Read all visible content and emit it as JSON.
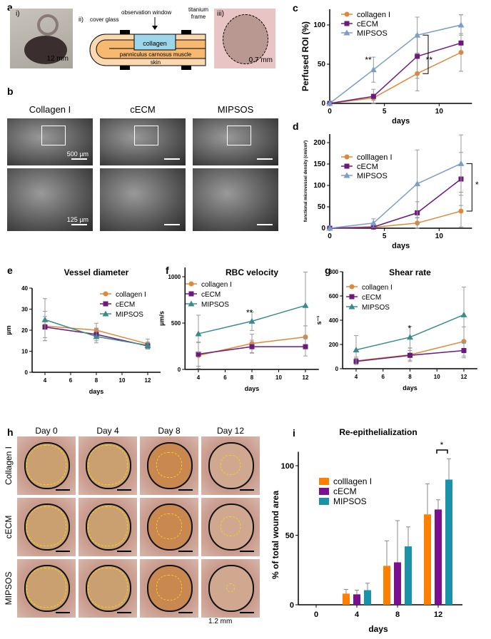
{
  "panels": {
    "a": "a",
    "b": "b",
    "c": "c",
    "d": "d",
    "e": "e",
    "f": "f",
    "g": "g",
    "h": "h",
    "i": "i"
  },
  "panel_a": {
    "i_label": "i)",
    "i_scale": "12 mm",
    "ii_label": "ii)",
    "cover_glass": "cover glass",
    "observation_window": "observation window",
    "titanium_frame_1": "titanium",
    "titanium_frame_2": "frame",
    "collagen": "collagen",
    "muscle": "panniculus carnosus muscle",
    "skin": "skin",
    "iii_label": "iii)",
    "iii_scale": "0.7 mm"
  },
  "panel_b": {
    "columns": [
      "Collagen I",
      "cECM",
      "MIPSOS"
    ],
    "scale_top": "500 µm",
    "scale_bottom": "125 µm"
  },
  "panel_h": {
    "columns": [
      "Day 0",
      "Day 4",
      "Day 8",
      "Day 12"
    ],
    "rows": [
      "Collagen I",
      "cECM",
      "MIPSOS"
    ],
    "scale": "1.2 mm"
  },
  "colors": {
    "collagen": "#e0883a",
    "cecm": "#6b1a7c",
    "mipsos_cd": "#7c9cca",
    "mipsos_efg": "#3a8c8c",
    "bar_collagen": "#ff8000",
    "bar_cecm": "#7a1090",
    "bar_mipsos": "#1a92aa"
  },
  "chart_data": [
    {
      "id": "c",
      "type": "line",
      "title": "",
      "xlabel": "days",
      "ylabel": "Perfused ROI (%)",
      "xlim": [
        0,
        13
      ],
      "ylim": [
        0,
        120
      ],
      "xticks": [
        0,
        5,
        10
      ],
      "yticks": [
        0,
        50,
        100
      ],
      "legend": "top-left",
      "annotations": [
        "**",
        "**"
      ],
      "x": [
        0,
        4,
        8,
        12
      ],
      "series": [
        {
          "name": "collagen I",
          "marker": "circle",
          "values": [
            0,
            7,
            38,
            65
          ],
          "error": [
            0,
            3,
            22,
            24
          ]
        },
        {
          "name": "cECM",
          "marker": "square",
          "values": [
            0,
            9,
            60,
            77
          ],
          "error": [
            0,
            9,
            28,
            36
          ]
        },
        {
          "name": "MIPSOS",
          "marker": "triangle",
          "values": [
            0,
            43,
            87,
            100
          ],
          "error": [
            0,
            16,
            23,
            13
          ]
        }
      ]
    },
    {
      "id": "d",
      "type": "line",
      "title": "",
      "xlabel": "days",
      "ylabel": "functional microvessel density (cm/cm²)",
      "xlim": [
        0,
        13
      ],
      "ylim": [
        0,
        220
      ],
      "xticks": [
        0,
        5,
        10
      ],
      "yticks": [
        0,
        50,
        100,
        150,
        200
      ],
      "legend": "middle-left",
      "annotations": [
        "*"
      ],
      "x": [
        0,
        4,
        8,
        12
      ],
      "series": [
        {
          "name": "colllagen I",
          "marker": "circle",
          "values": [
            0,
            2,
            12,
            40
          ],
          "error": [
            0,
            2,
            12,
            37
          ]
        },
        {
          "name": "cECM",
          "marker": "square",
          "values": [
            0,
            3,
            36,
            115
          ],
          "error": [
            0,
            3,
            26,
            62
          ]
        },
        {
          "name": "MIPSOS",
          "marker": "triangle",
          "values": [
            0,
            12,
            104,
            151
          ],
          "error": [
            0,
            10,
            79,
            67
          ]
        }
      ]
    },
    {
      "id": "e",
      "type": "line",
      "title": "Vessel diameter",
      "xlabel": "days",
      "ylabel": "µm",
      "xlim": [
        3,
        13
      ],
      "ylim": [
        0,
        40
      ],
      "xticks": [
        4,
        6,
        8,
        10,
        12
      ],
      "yticks": [
        0,
        10,
        20,
        30,
        40
      ],
      "legend": "top-right",
      "annotations": [],
      "x": [
        4,
        8,
        12
      ],
      "series": [
        {
          "name": "collagen I",
          "marker": "circle",
          "values": [
            22,
            20,
            13.5
          ],
          "error": [
            7,
            3.3,
            2.3
          ]
        },
        {
          "name": "cECM",
          "marker": "square",
          "values": [
            21.5,
            18,
            12.5
          ],
          "error": [
            5,
            3,
            1.5
          ]
        },
        {
          "name": "MIPSOS",
          "marker": "triangle",
          "values": [
            25,
            17,
            12.8
          ],
          "error": [
            10,
            3,
            1.5
          ]
        }
      ]
    },
    {
      "id": "f",
      "type": "line",
      "title": "RBC velocity",
      "xlabel": "days",
      "ylabel": "µm/s",
      "xlim": [
        3,
        13
      ],
      "ylim": [
        0,
        1100
      ],
      "xticks": [
        4,
        6,
        8,
        10,
        12
      ],
      "yticks": [
        0,
        500,
        1000
      ],
      "legend": "top-left",
      "annotations": [
        "**"
      ],
      "x": [
        4,
        8,
        12
      ],
      "series": [
        {
          "name": "collagen I",
          "marker": "circle",
          "values": [
            150,
            280,
            350
          ],
          "error": [
            140,
            100,
            120
          ]
        },
        {
          "name": "cECM",
          "marker": "square",
          "values": [
            165,
            245,
            245
          ],
          "error": [
            130,
            70,
            100
          ]
        },
        {
          "name": "MIPSOS",
          "marker": "triangle",
          "values": [
            385,
            520,
            690
          ],
          "error": [
            200,
            100,
            360
          ]
        }
      ]
    },
    {
      "id": "g",
      "type": "line",
      "title": "Shear rate",
      "xlabel": "days",
      "ylabel": "s⁻¹",
      "xlim": [
        3,
        13
      ],
      "ylim": [
        0,
        800
      ],
      "xticks": [
        4,
        6,
        8,
        10,
        12
      ],
      "yticks": [
        0,
        200,
        400,
        600,
        800
      ],
      "legend": "top-left",
      "annotations": [
        "*"
      ],
      "x": [
        4,
        8,
        12
      ],
      "series": [
        {
          "name": "collagen I",
          "marker": "circle",
          "values": [
            65,
            115,
            225
          ],
          "error": [
            30,
            55,
            120
          ]
        },
        {
          "name": "cECM",
          "marker": "square",
          "values": [
            60,
            110,
            150
          ],
          "error": [
            25,
            40,
            60
          ]
        },
        {
          "name": "MIPSOS",
          "marker": "triangle",
          "values": [
            155,
            260,
            445
          ],
          "error": [
            118,
            88,
            228
          ]
        }
      ]
    },
    {
      "id": "i",
      "type": "bar",
      "title": "Re-epithelialization",
      "xlabel": "days",
      "ylabel": "% of total wound area",
      "ylim": [
        0,
        110
      ],
      "yticks": [
        0,
        50,
        100
      ],
      "legend": "top-left",
      "annotations": [
        "*"
      ],
      "categories": [
        "0",
        "4",
        "8",
        "12"
      ],
      "series": [
        {
          "name": "colllagen I",
          "values": [
            0,
            8,
            28,
            65
          ],
          "error": [
            0,
            3,
            18,
            22
          ]
        },
        {
          "name": "cECM",
          "values": [
            0,
            7.5,
            30.5,
            68.5
          ],
          "error": [
            0,
            3,
            30,
            7
          ]
        },
        {
          "name": "MIPSOS",
          "values": [
            0,
            10.5,
            42,
            90
          ],
          "error": [
            0,
            5,
            14,
            15
          ]
        }
      ]
    }
  ]
}
